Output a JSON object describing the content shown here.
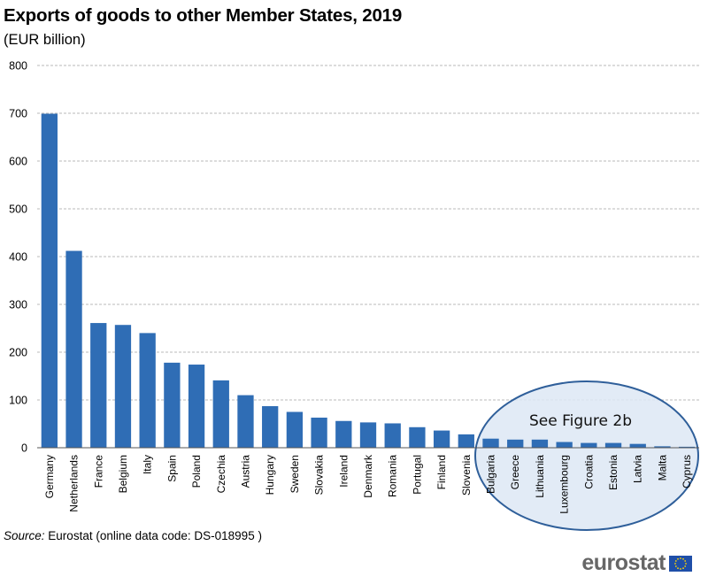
{
  "title": "Exports of goods to other Member States, 2019",
  "subtitle": "(EUR billion)",
  "source": {
    "label": "Source:",
    "text": "Eurostat (online data code: DS-018995 )"
  },
  "logo_text": "eurostat",
  "callout_text": "See Figure 2b",
  "colors": {
    "bar": "#2f6db5",
    "grid": "#b8b8b8",
    "callout_fill": "#dde7f5",
    "callout_stroke": "#2f5f9a"
  },
  "chart_data": {
    "type": "bar",
    "title": "Exports of goods to other Member States, 2019",
    "ylabel": "",
    "xlabel": "",
    "ylim": [
      0,
      800
    ],
    "yticks": [
      0,
      100,
      200,
      300,
      400,
      500,
      600,
      700,
      800
    ],
    "grid": true,
    "categories": [
      "Germany",
      "Netherlands",
      "France",
      "Belgium",
      "Italy",
      "Spain",
      "Poland",
      "Czechia",
      "Austria",
      "Hungary",
      "Sweden",
      "Slovakia",
      "Ireland",
      "Denmark",
      "Romania",
      "Portugal",
      "Finland",
      "Slovenia",
      "Bulgaria",
      "Greece",
      "Lithuania",
      "Luxembourg",
      "Croatia",
      "Estonia",
      "Latvia",
      "Malta",
      "Cyprus"
    ],
    "values": [
      699,
      412,
      261,
      257,
      240,
      178,
      174,
      141,
      110,
      87,
      75,
      63,
      56,
      53,
      51,
      43,
      36,
      28,
      19,
      17,
      17,
      12,
      10,
      10,
      8,
      3,
      2
    ]
  }
}
